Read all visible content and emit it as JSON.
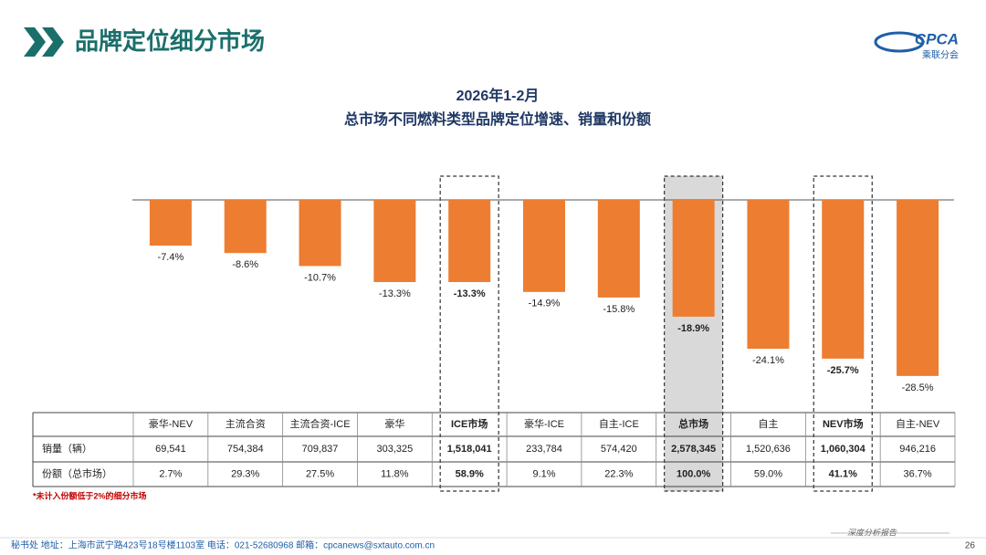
{
  "header": {
    "title": "品牌定位细分市场",
    "logo_text": "CPCA",
    "logo_subtext": "乘联分会"
  },
  "chart_data": {
    "type": "bar",
    "title": "2026年1-2月",
    "subtitle": "总市场不同燃料类型品牌定位增速、销量和份额",
    "categories": [
      "豪华-NEV",
      "主流合资",
      "主流合资-ICE",
      "豪华",
      "ICE市场",
      "豪华-ICE",
      "自主-ICE",
      "总市场",
      "自主",
      "NEV市场",
      "自主-NEV"
    ],
    "values": [
      -7.4,
      -8.6,
      -10.7,
      -13.3,
      -13.3,
      -14.9,
      -15.8,
      -18.9,
      -24.1,
      -25.7,
      -28.5
    ],
    "value_labels": [
      "-7.4%",
      "-8.6%",
      "-10.7%",
      "-13.3%",
      "-13.3%",
      "-14.9%",
      "-15.8%",
      "-18.9%",
      "-24.1%",
      "-25.7%",
      "-28.5%"
    ],
    "color": "#ed7d31",
    "ylim": [
      -30,
      0
    ],
    "highlight": [
      4,
      7,
      9
    ],
    "shaded": [
      7
    ]
  },
  "table": {
    "rows": [
      {
        "label": "销量（辆）",
        "cells": [
          "69,541",
          "754,384",
          "709,837",
          "303,325",
          "1,518,041",
          "233,784",
          "574,420",
          "2,578,345",
          "1,520,636",
          "1,060,304",
          "946,216"
        ]
      },
      {
        "label": "份额（总市场）",
        "cells": [
          "2.7%",
          "29.3%",
          "27.5%",
          "11.8%",
          "58.9%",
          "9.1%",
          "22.3%",
          "100.0%",
          "59.0%",
          "41.1%",
          "36.7%"
        ]
      }
    ]
  },
  "footnote": "*未计入份额低于2%的细分市场",
  "footer": {
    "tag": "深度分析报告",
    "address": "秘书处   地址：上海市武宁路423号18号楼1103室   电话：021-52680968    邮箱：cpcanews@sxtauto.com.cn",
    "page": "26"
  }
}
